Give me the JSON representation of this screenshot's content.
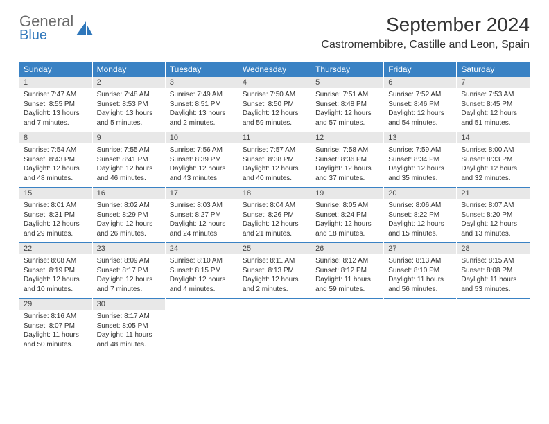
{
  "logo": {
    "text_gray": "General",
    "text_blue": "Blue"
  },
  "title": "September 2024",
  "location": "Castromembibre, Castille and Leon, Spain",
  "colors": {
    "header_bg": "#3a82c4",
    "header_text": "#ffffff",
    "daynum_bg": "#e8e8e8",
    "border": "#3a82c4",
    "text": "#333333",
    "logo_gray": "#6a6a6a",
    "logo_blue": "#2f77bb"
  },
  "day_names": [
    "Sunday",
    "Monday",
    "Tuesday",
    "Wednesday",
    "Thursday",
    "Friday",
    "Saturday"
  ],
  "weeks": [
    [
      {
        "n": "1",
        "sr": "Sunrise: 7:47 AM",
        "ss": "Sunset: 8:55 PM",
        "dl": "Daylight: 13 hours and 7 minutes."
      },
      {
        "n": "2",
        "sr": "Sunrise: 7:48 AM",
        "ss": "Sunset: 8:53 PM",
        "dl": "Daylight: 13 hours and 5 minutes."
      },
      {
        "n": "3",
        "sr": "Sunrise: 7:49 AM",
        "ss": "Sunset: 8:51 PM",
        "dl": "Daylight: 13 hours and 2 minutes."
      },
      {
        "n": "4",
        "sr": "Sunrise: 7:50 AM",
        "ss": "Sunset: 8:50 PM",
        "dl": "Daylight: 12 hours and 59 minutes."
      },
      {
        "n": "5",
        "sr": "Sunrise: 7:51 AM",
        "ss": "Sunset: 8:48 PM",
        "dl": "Daylight: 12 hours and 57 minutes."
      },
      {
        "n": "6",
        "sr": "Sunrise: 7:52 AM",
        "ss": "Sunset: 8:46 PM",
        "dl": "Daylight: 12 hours and 54 minutes."
      },
      {
        "n": "7",
        "sr": "Sunrise: 7:53 AM",
        "ss": "Sunset: 8:45 PM",
        "dl": "Daylight: 12 hours and 51 minutes."
      }
    ],
    [
      {
        "n": "8",
        "sr": "Sunrise: 7:54 AM",
        "ss": "Sunset: 8:43 PM",
        "dl": "Daylight: 12 hours and 48 minutes."
      },
      {
        "n": "9",
        "sr": "Sunrise: 7:55 AM",
        "ss": "Sunset: 8:41 PM",
        "dl": "Daylight: 12 hours and 46 minutes."
      },
      {
        "n": "10",
        "sr": "Sunrise: 7:56 AM",
        "ss": "Sunset: 8:39 PM",
        "dl": "Daylight: 12 hours and 43 minutes."
      },
      {
        "n": "11",
        "sr": "Sunrise: 7:57 AM",
        "ss": "Sunset: 8:38 PM",
        "dl": "Daylight: 12 hours and 40 minutes."
      },
      {
        "n": "12",
        "sr": "Sunrise: 7:58 AM",
        "ss": "Sunset: 8:36 PM",
        "dl": "Daylight: 12 hours and 37 minutes."
      },
      {
        "n": "13",
        "sr": "Sunrise: 7:59 AM",
        "ss": "Sunset: 8:34 PM",
        "dl": "Daylight: 12 hours and 35 minutes."
      },
      {
        "n": "14",
        "sr": "Sunrise: 8:00 AM",
        "ss": "Sunset: 8:33 PM",
        "dl": "Daylight: 12 hours and 32 minutes."
      }
    ],
    [
      {
        "n": "15",
        "sr": "Sunrise: 8:01 AM",
        "ss": "Sunset: 8:31 PM",
        "dl": "Daylight: 12 hours and 29 minutes."
      },
      {
        "n": "16",
        "sr": "Sunrise: 8:02 AM",
        "ss": "Sunset: 8:29 PM",
        "dl": "Daylight: 12 hours and 26 minutes."
      },
      {
        "n": "17",
        "sr": "Sunrise: 8:03 AM",
        "ss": "Sunset: 8:27 PM",
        "dl": "Daylight: 12 hours and 24 minutes."
      },
      {
        "n": "18",
        "sr": "Sunrise: 8:04 AM",
        "ss": "Sunset: 8:26 PM",
        "dl": "Daylight: 12 hours and 21 minutes."
      },
      {
        "n": "19",
        "sr": "Sunrise: 8:05 AM",
        "ss": "Sunset: 8:24 PM",
        "dl": "Daylight: 12 hours and 18 minutes."
      },
      {
        "n": "20",
        "sr": "Sunrise: 8:06 AM",
        "ss": "Sunset: 8:22 PM",
        "dl": "Daylight: 12 hours and 15 minutes."
      },
      {
        "n": "21",
        "sr": "Sunrise: 8:07 AM",
        "ss": "Sunset: 8:20 PM",
        "dl": "Daylight: 12 hours and 13 minutes."
      }
    ],
    [
      {
        "n": "22",
        "sr": "Sunrise: 8:08 AM",
        "ss": "Sunset: 8:19 PM",
        "dl": "Daylight: 12 hours and 10 minutes."
      },
      {
        "n": "23",
        "sr": "Sunrise: 8:09 AM",
        "ss": "Sunset: 8:17 PM",
        "dl": "Daylight: 12 hours and 7 minutes."
      },
      {
        "n": "24",
        "sr": "Sunrise: 8:10 AM",
        "ss": "Sunset: 8:15 PM",
        "dl": "Daylight: 12 hours and 4 minutes."
      },
      {
        "n": "25",
        "sr": "Sunrise: 8:11 AM",
        "ss": "Sunset: 8:13 PM",
        "dl": "Daylight: 12 hours and 2 minutes."
      },
      {
        "n": "26",
        "sr": "Sunrise: 8:12 AM",
        "ss": "Sunset: 8:12 PM",
        "dl": "Daylight: 11 hours and 59 minutes."
      },
      {
        "n": "27",
        "sr": "Sunrise: 8:13 AM",
        "ss": "Sunset: 8:10 PM",
        "dl": "Daylight: 11 hours and 56 minutes."
      },
      {
        "n": "28",
        "sr": "Sunrise: 8:15 AM",
        "ss": "Sunset: 8:08 PM",
        "dl": "Daylight: 11 hours and 53 minutes."
      }
    ],
    [
      {
        "n": "29",
        "sr": "Sunrise: 8:16 AM",
        "ss": "Sunset: 8:07 PM",
        "dl": "Daylight: 11 hours and 50 minutes."
      },
      {
        "n": "30",
        "sr": "Sunrise: 8:17 AM",
        "ss": "Sunset: 8:05 PM",
        "dl": "Daylight: 11 hours and 48 minutes."
      },
      null,
      null,
      null,
      null,
      null
    ]
  ]
}
